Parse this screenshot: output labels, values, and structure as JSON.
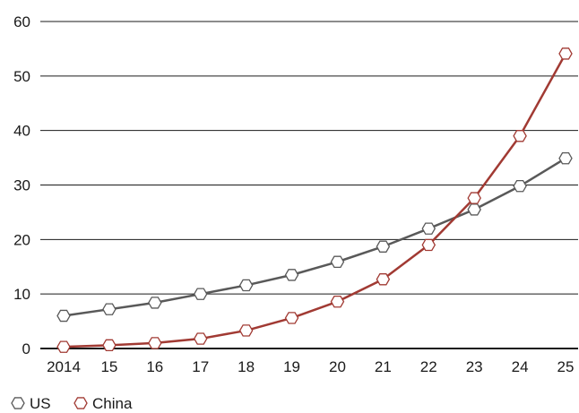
{
  "chart_data": {
    "type": "line",
    "x": [
      "2014",
      "15",
      "16",
      "17",
      "18",
      "19",
      "20",
      "21",
      "22",
      "23",
      "24",
      "25"
    ],
    "ylim": [
      0,
      60
    ],
    "yticks": [
      0,
      10,
      20,
      30,
      40,
      50,
      60
    ],
    "grid": "horizontal",
    "legend": "bottom-left",
    "series": [
      {
        "name": "US",
        "color": "#595959",
        "marker": "hexagon",
        "values": [
          6.0,
          7.2,
          8.4,
          10.0,
          11.6,
          13.5,
          15.9,
          18.7,
          22.0,
          25.5,
          29.8,
          34.9
        ]
      },
      {
        "name": "China",
        "color": "#a13a33",
        "marker": "hexagon",
        "values": [
          0.3,
          0.6,
          1.0,
          1.8,
          3.3,
          5.6,
          8.6,
          12.7,
          19.0,
          27.6,
          39.0,
          54.1
        ]
      }
    ]
  }
}
